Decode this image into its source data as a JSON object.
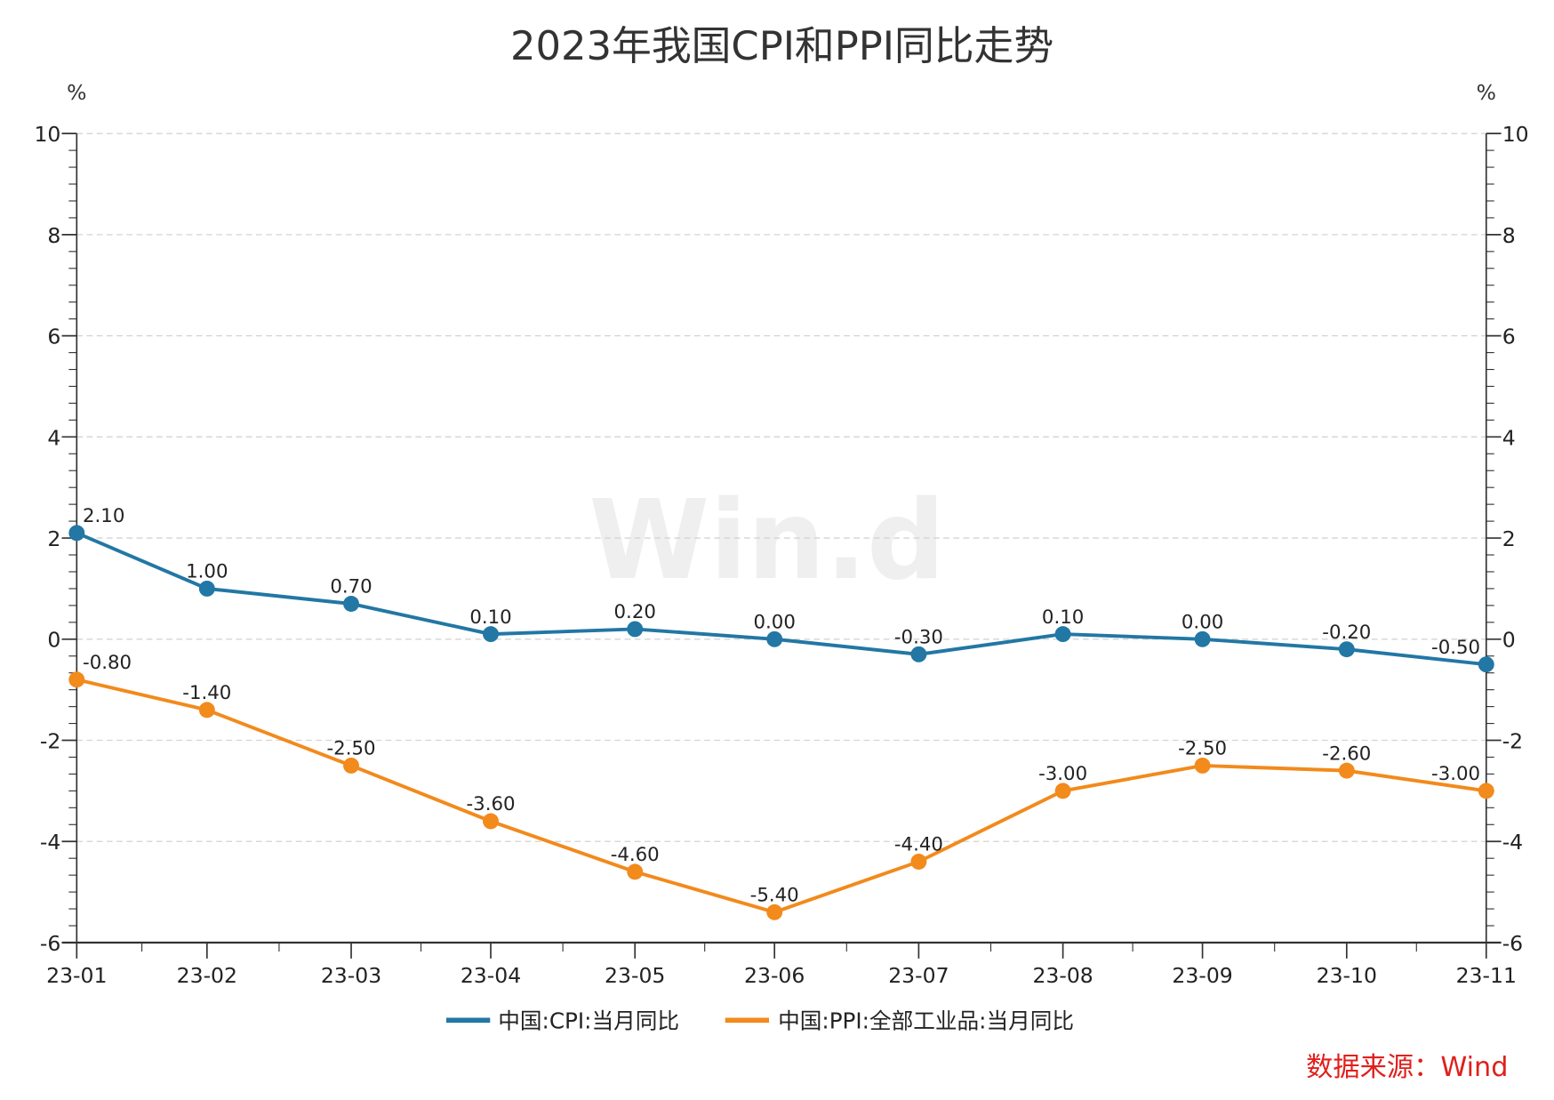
{
  "chart_data": {
    "type": "line",
    "title": "2023年我国CPI和PPI同比走势",
    "ylabel_left": "%",
    "ylabel_right": "%",
    "ylim": [
      -6,
      10
    ],
    "yticks": [
      -6,
      -4,
      -2,
      0,
      2,
      4,
      6,
      8,
      10
    ],
    "categories": [
      "23-01",
      "23-02",
      "23-03",
      "23-04",
      "23-05",
      "23-06",
      "23-07",
      "23-08",
      "23-09",
      "23-10",
      "23-11"
    ],
    "grid": true,
    "legend_position": "bottom",
    "series": [
      {
        "name": "中国:CPI:当月同比",
        "color": "#2277a4",
        "values": [
          2.1,
          1.0,
          0.7,
          0.1,
          0.2,
          0.0,
          -0.3,
          0.1,
          0.0,
          -0.2,
          -0.5
        ]
      },
      {
        "name": "中国:PPI:全部工业品:当月同比",
        "color": "#f28a1c",
        "values": [
          -0.8,
          -1.4,
          -2.5,
          -3.6,
          -4.6,
          -5.4,
          -4.4,
          -3.0,
          -2.5,
          -2.6,
          -3.0
        ]
      }
    ]
  },
  "watermark": "Win.d",
  "source": "数据来源：Wind",
  "source_color": "#e0201c"
}
